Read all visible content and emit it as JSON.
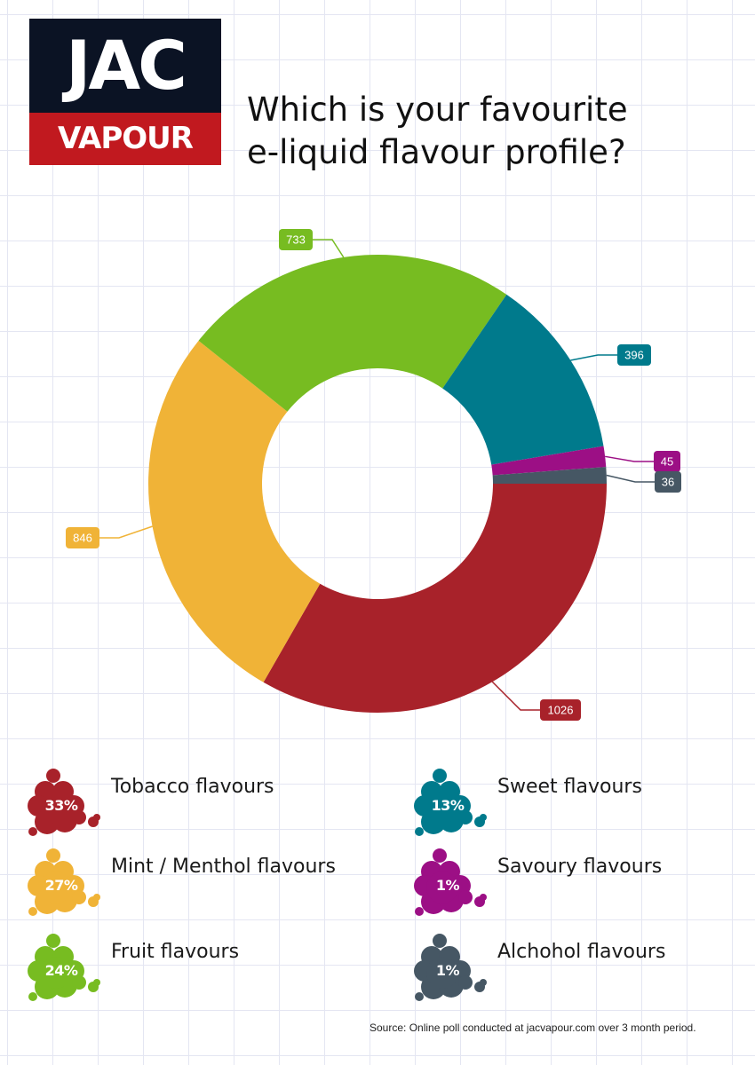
{
  "brand": {
    "top": "JAC",
    "bottom": "VAPOUR"
  },
  "title_lines": [
    "Which is your favourite",
    "e-liquid flavour profile?"
  ],
  "colors": {
    "tobacco": "#a8222a",
    "sweet": "#007a8c",
    "savoury": "#9c0f85",
    "alcohol": "#465764",
    "fruit": "#77bc21",
    "mint": "#f0b337",
    "logo_dark": "#0b1324",
    "logo_red": "#c1191f"
  },
  "chart_data": {
    "type": "pie",
    "variant": "donut",
    "title": "Which is your favourite e-liquid flavour profile?",
    "slices": [
      {
        "label": "Tobacco flavours",
        "value": 1026,
        "percent": "33%",
        "color": "#a8222a"
      },
      {
        "label": "Mint / Menthol flavours",
        "value": 846,
        "percent": "27%",
        "color": "#f0b337"
      },
      {
        "label": "Fruit flavours",
        "value": 733,
        "percent": "24%",
        "color": "#77bc21"
      },
      {
        "label": "Sweet flavours",
        "value": 396,
        "percent": "13%",
        "color": "#007a8c"
      },
      {
        "label": "Savoury flavours",
        "value": 45,
        "percent": "1%",
        "color": "#9c0f85"
      },
      {
        "label": "Alchohol flavours",
        "value": 36,
        "percent": "1%",
        "color": "#465764"
      }
    ]
  },
  "legend": [
    {
      "percent": "33%",
      "label": "Tobacco flavours",
      "color": "#a8222a"
    },
    {
      "percent": "13%",
      "label": "Sweet flavours",
      "color": "#007a8c"
    },
    {
      "percent": "27%",
      "label": "Mint / Menthol flavours",
      "color": "#f0b337"
    },
    {
      "percent": "1%",
      "label": "Savoury flavours",
      "color": "#9c0f85"
    },
    {
      "percent": "24%",
      "label": "Fruit flavours",
      "color": "#77bc21"
    },
    {
      "percent": "1%",
      "label": "Alchohol flavours",
      "color": "#465764"
    }
  ],
  "source": "Source: Online poll conducted at jacvapour.com over 3 month period."
}
